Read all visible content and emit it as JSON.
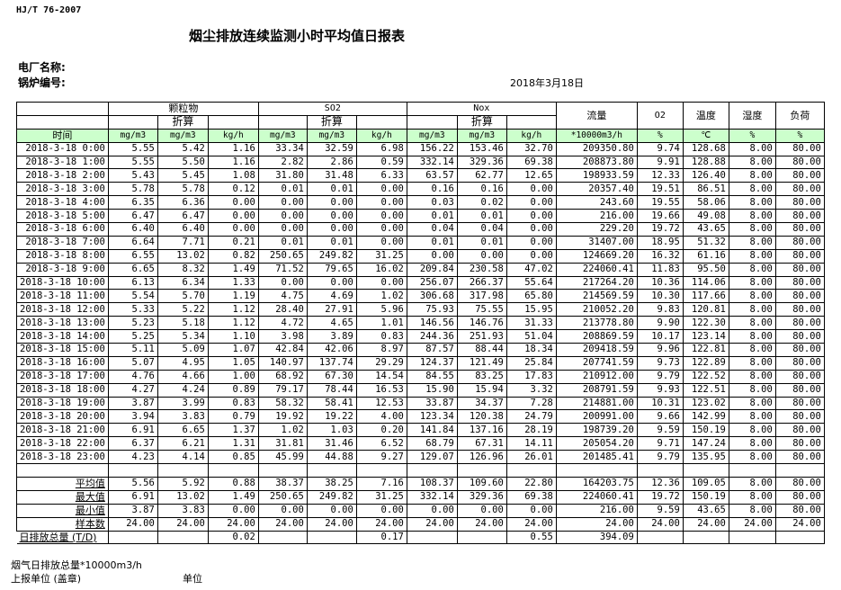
{
  "standard": "HJ/T  76-2007",
  "title": "烟尘排放连续监测小时平均值日报表",
  "plant_label": "电厂名称:",
  "boiler_label": "锅炉编号:",
  "report_date": "2018年3月18日",
  "header": {
    "groups": [
      "颗粒物",
      "SO2",
      "Nox"
    ],
    "converted": "折算",
    "flow": "流量",
    "o2": "O2",
    "temp": "温度",
    "humidity": "湿度",
    "load": "负荷",
    "time": "时间",
    "units": [
      "mg/m3",
      "mg/m3",
      "kg/h",
      "mg/m3",
      "mg/m3",
      "kg/h",
      "mg/m3",
      "mg/m3",
      "kg/h",
      "*10000m3/h",
      "%",
      "℃",
      "%",
      "%"
    ]
  },
  "header_bg": "#ccffcc",
  "rows": [
    [
      "2018-3-18 0:00",
      "5.55",
      "5.42",
      "1.16",
      "33.34",
      "32.59",
      "6.98",
      "156.22",
      "153.46",
      "32.70",
      "209350.80",
      "9.74",
      "128.68",
      "8.00",
      "80.00"
    ],
    [
      "2018-3-18 1:00",
      "5.55",
      "5.50",
      "1.16",
      "2.82",
      "2.86",
      "0.59",
      "332.14",
      "329.36",
      "69.38",
      "208873.80",
      "9.91",
      "128.88",
      "8.00",
      "80.00"
    ],
    [
      "2018-3-18 2:00",
      "5.43",
      "5.45",
      "1.08",
      "31.80",
      "31.48",
      "6.33",
      "63.57",
      "62.77",
      "12.65",
      "198933.59",
      "12.33",
      "126.40",
      "8.00",
      "80.00"
    ],
    [
      "2018-3-18 3:00",
      "5.78",
      "5.78",
      "0.12",
      "0.01",
      "0.01",
      "0.00",
      "0.16",
      "0.16",
      "0.00",
      "20357.40",
      "19.51",
      "86.51",
      "8.00",
      "80.00"
    ],
    [
      "2018-3-18 4:00",
      "6.35",
      "6.36",
      "0.00",
      "0.00",
      "0.00",
      "0.00",
      "0.03",
      "0.02",
      "0.00",
      "243.60",
      "19.55",
      "58.06",
      "8.00",
      "80.00"
    ],
    [
      "2018-3-18 5:00",
      "6.47",
      "6.47",
      "0.00",
      "0.00",
      "0.00",
      "0.00",
      "0.01",
      "0.01",
      "0.00",
      "216.00",
      "19.66",
      "49.08",
      "8.00",
      "80.00"
    ],
    [
      "2018-3-18 6:00",
      "6.40",
      "6.40",
      "0.00",
      "0.00",
      "0.00",
      "0.00",
      "0.04",
      "0.04",
      "0.00",
      "229.20",
      "19.72",
      "43.65",
      "8.00",
      "80.00"
    ],
    [
      "2018-3-18 7:00",
      "6.64",
      "7.71",
      "0.21",
      "0.01",
      "0.01",
      "0.00",
      "0.01",
      "0.01",
      "0.00",
      "31407.00",
      "18.95",
      "51.32",
      "8.00",
      "80.00"
    ],
    [
      "2018-3-18 8:00",
      "6.55",
      "13.02",
      "0.82",
      "250.65",
      "249.82",
      "31.25",
      "0.00",
      "0.00",
      "0.00",
      "124669.20",
      "16.32",
      "61.16",
      "8.00",
      "80.00"
    ],
    [
      "2018-3-18 9:00",
      "6.65",
      "8.32",
      "1.49",
      "71.52",
      "79.65",
      "16.02",
      "209.84",
      "230.58",
      "47.02",
      "224060.41",
      "11.83",
      "95.50",
      "8.00",
      "80.00"
    ],
    [
      "2018-3-18 10:00",
      "6.13",
      "6.34",
      "1.33",
      "0.00",
      "0.00",
      "0.00",
      "256.07",
      "266.37",
      "55.64",
      "217264.20",
      "10.36",
      "114.06",
      "8.00",
      "80.00"
    ],
    [
      "2018-3-18 11:00",
      "5.54",
      "5.70",
      "1.19",
      "4.75",
      "4.69",
      "1.02",
      "306.68",
      "317.98",
      "65.80",
      "214569.59",
      "10.30",
      "117.66",
      "8.00",
      "80.00"
    ],
    [
      "2018-3-18 12:00",
      "5.33",
      "5.22",
      "1.12",
      "28.40",
      "27.91",
      "5.96",
      "75.93",
      "75.55",
      "15.95",
      "210052.20",
      "9.83",
      "120.81",
      "8.00",
      "80.00"
    ],
    [
      "2018-3-18 13:00",
      "5.23",
      "5.18",
      "1.12",
      "4.72",
      "4.65",
      "1.01",
      "146.56",
      "146.76",
      "31.33",
      "213778.80",
      "9.90",
      "122.30",
      "8.00",
      "80.00"
    ],
    [
      "2018-3-18 14:00",
      "5.25",
      "5.34",
      "1.10",
      "3.98",
      "3.89",
      "0.83",
      "244.36",
      "251.93",
      "51.04",
      "208869.59",
      "10.17",
      "123.14",
      "8.00",
      "80.00"
    ],
    [
      "2018-3-18 15:00",
      "5.11",
      "5.09",
      "1.07",
      "42.84",
      "42.06",
      "8.97",
      "87.57",
      "88.44",
      "18.34",
      "209418.59",
      "9.96",
      "122.81",
      "8.00",
      "80.00"
    ],
    [
      "2018-3-18 16:00",
      "5.07",
      "4.95",
      "1.05",
      "140.97",
      "137.74",
      "29.29",
      "124.37",
      "121.49",
      "25.84",
      "207741.59",
      "9.73",
      "122.89",
      "8.00",
      "80.00"
    ],
    [
      "2018-3-18 17:00",
      "4.76",
      "4.66",
      "1.00",
      "68.92",
      "67.30",
      "14.54",
      "84.55",
      "83.25",
      "17.83",
      "210912.00",
      "9.79",
      "122.52",
      "8.00",
      "80.00"
    ],
    [
      "2018-3-18 18:00",
      "4.27",
      "4.24",
      "0.89",
      "79.17",
      "78.44",
      "16.53",
      "15.90",
      "15.94",
      "3.32",
      "208791.59",
      "9.93",
      "122.51",
      "8.00",
      "80.00"
    ],
    [
      "2018-3-18 19:00",
      "3.87",
      "3.99",
      "0.83",
      "58.32",
      "58.41",
      "12.53",
      "33.87",
      "34.37",
      "7.28",
      "214881.00",
      "10.31",
      "123.02",
      "8.00",
      "80.00"
    ],
    [
      "2018-3-18 20:00",
      "3.94",
      "3.83",
      "0.79",
      "19.92",
      "19.22",
      "4.00",
      "123.34",
      "120.38",
      "24.79",
      "200991.00",
      "9.66",
      "142.99",
      "8.00",
      "80.00"
    ],
    [
      "2018-3-18 21:00",
      "6.91",
      "6.65",
      "1.37",
      "1.02",
      "1.03",
      "0.20",
      "141.84",
      "137.16",
      "28.19",
      "198739.20",
      "9.59",
      "150.19",
      "8.00",
      "80.00"
    ],
    [
      "2018-3-18 22:00",
      "6.37",
      "6.21",
      "1.31",
      "31.81",
      "31.46",
      "6.52",
      "68.79",
      "67.31",
      "14.11",
      "205054.20",
      "9.71",
      "147.24",
      "8.00",
      "80.00"
    ],
    [
      "2018-3-18 23:00",
      "4.23",
      "4.14",
      "0.85",
      "45.99",
      "44.88",
      "9.27",
      "129.07",
      "126.96",
      "26.01",
      "201485.41",
      "9.79",
      "135.95",
      "8.00",
      "80.00"
    ]
  ],
  "summary": [
    [
      "平均值",
      "5.56",
      "5.92",
      "0.88",
      "38.37",
      "38.25",
      "7.16",
      "108.37",
      "109.60",
      "22.80",
      "164203.75",
      "12.36",
      "109.05",
      "8.00",
      "80.00"
    ],
    [
      "最大值",
      "6.91",
      "13.02",
      "1.49",
      "250.65",
      "249.82",
      "31.25",
      "332.14",
      "329.36",
      "69.38",
      "224060.41",
      "19.72",
      "150.19",
      "8.00",
      "80.00"
    ],
    [
      "最小值",
      "3.87",
      "3.83",
      "0.00",
      "0.00",
      "0.00",
      "0.00",
      "0.00",
      "0.00",
      "0.00",
      "216.00",
      "9.59",
      "43.65",
      "8.00",
      "80.00"
    ],
    [
      "样本数",
      "24.00",
      "24.00",
      "24.00",
      "24.00",
      "24.00",
      "24.00",
      "24.00",
      "24.00",
      "24.00",
      "24.00",
      "24.00",
      "24.00",
      "24.00",
      "24.00"
    ],
    [
      "日排放总量 (T/D)",
      "",
      "",
      "0.02",
      "",
      "",
      "0.17",
      "",
      "",
      "0.55",
      "394.09",
      "",
      "",
      "",
      ""
    ]
  ],
  "footer": {
    "flue_total": "烟气日排放总量*10000m3/h",
    "reporting_unit": "上报单位 (盖章)",
    "unit": "单位"
  }
}
